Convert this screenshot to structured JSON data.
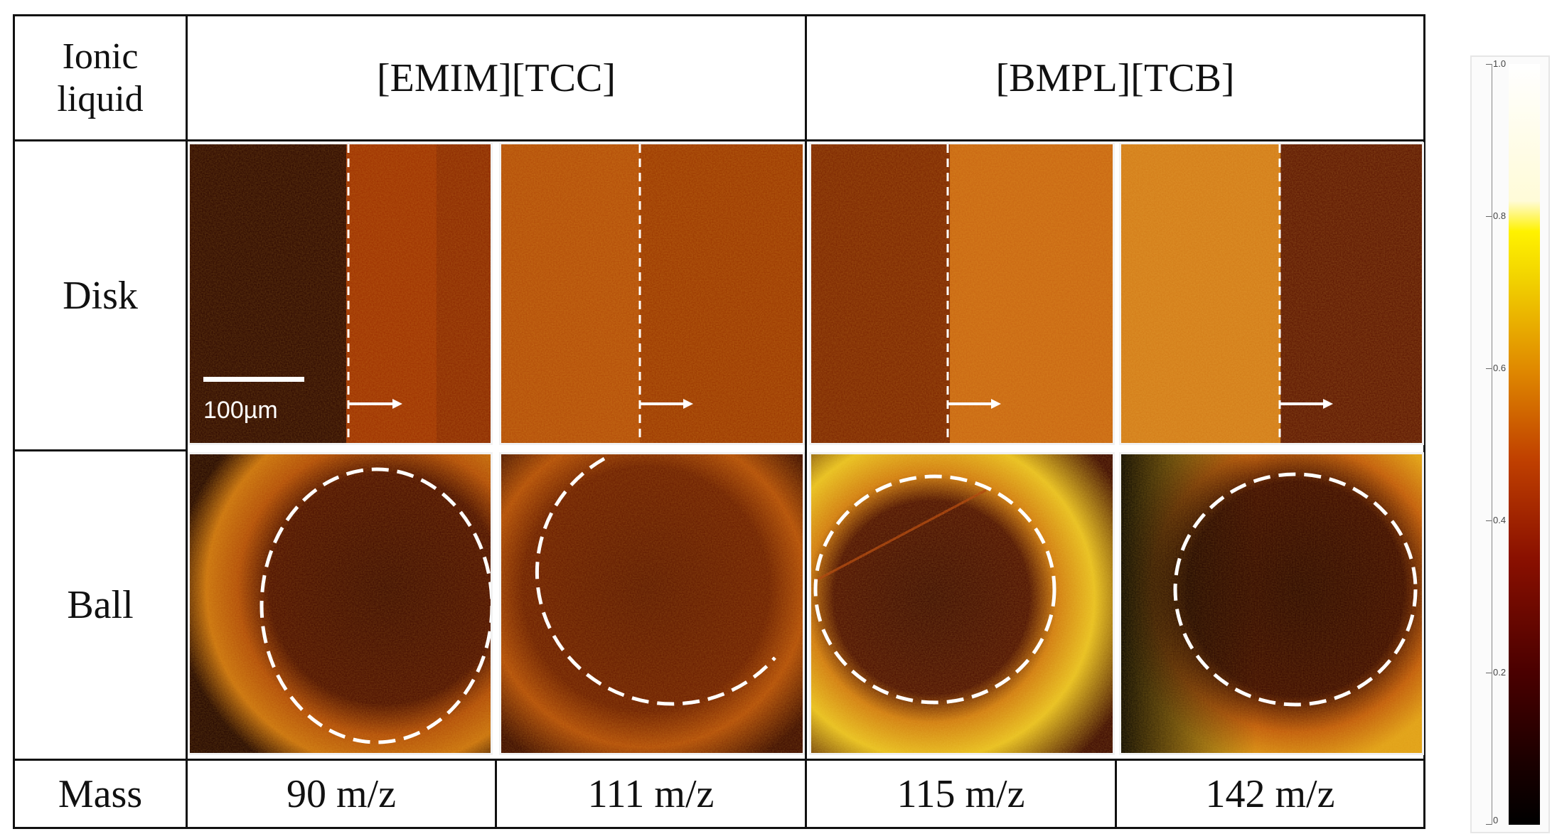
{
  "table": {
    "header_label": "Ionic\nliquid",
    "liquids": [
      "[EMIM][TCC]",
      "[BMPL][TCB]"
    ],
    "rows": [
      "Disk",
      "Ball"
    ],
    "mass_label": "Mass",
    "masses": [
      "90 m/z",
      "111 m/z",
      "115 m/z",
      "142 m/z"
    ]
  },
  "scale_bar": {
    "label": "100µm"
  },
  "colorbar": {
    "ticks": [
      "1.0",
      "0.8",
      "0.6",
      "0.4",
      "0.2",
      "0"
    ],
    "colors": [
      "#000000",
      "#3a0000",
      "#8a1a00",
      "#c85a00",
      "#e9a400",
      "#f5e000",
      "#fffbd0",
      "#ffffff"
    ]
  },
  "panel_colors": {
    "dark": "#260400",
    "mid": "#9a3000",
    "bright": "#d98a10",
    "hot": "#e8c220"
  }
}
